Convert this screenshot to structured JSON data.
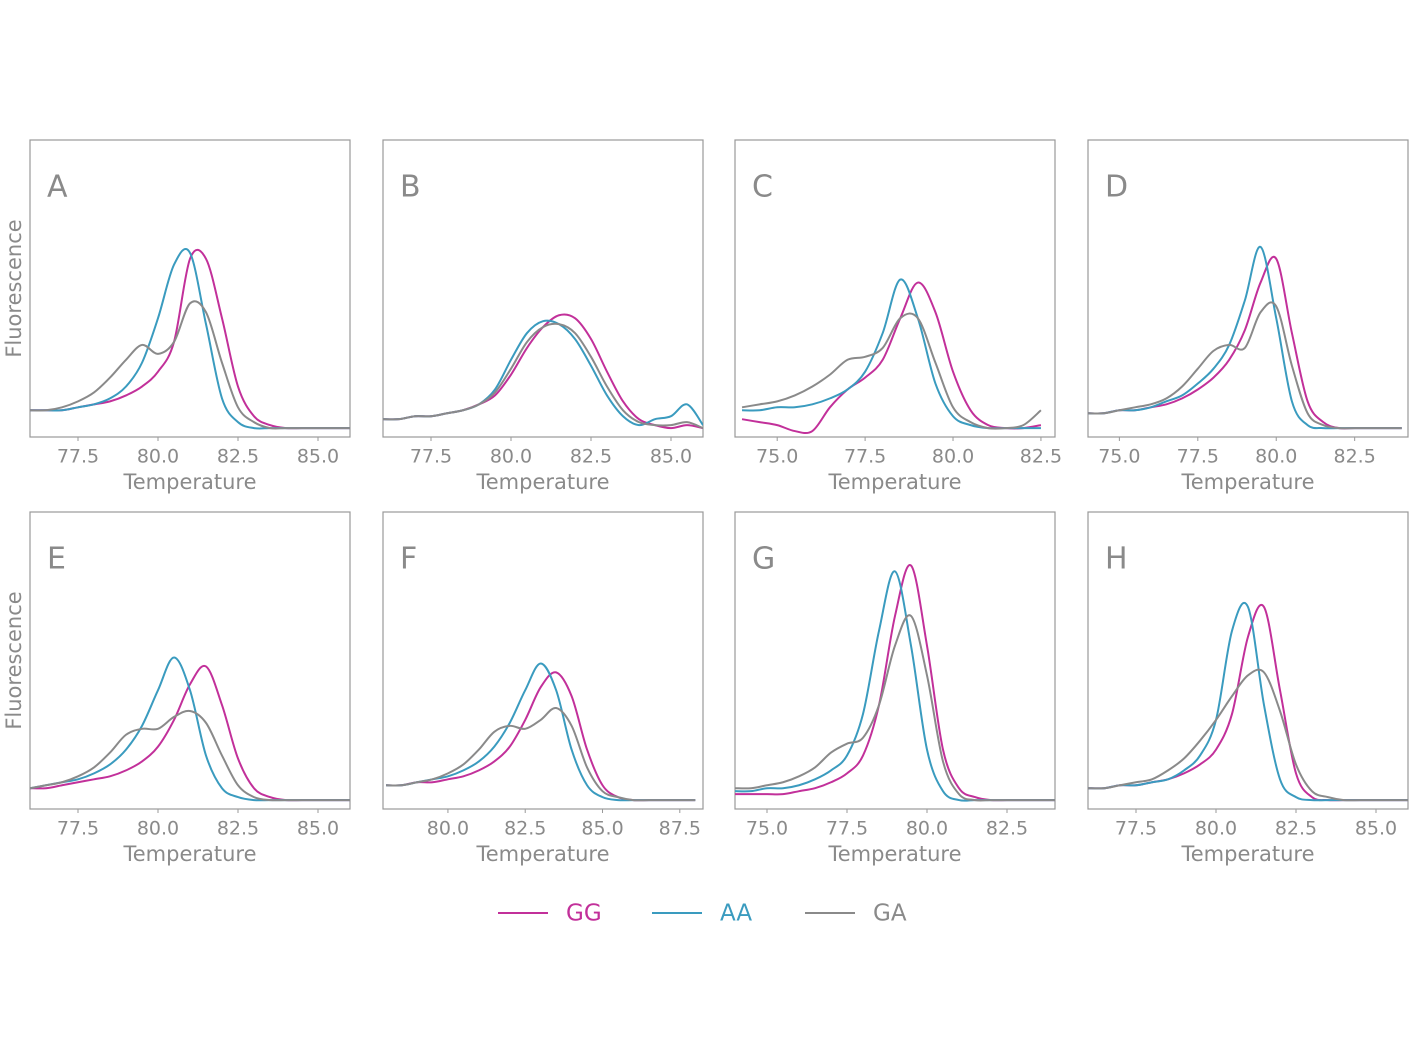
{
  "chart_data": [
    {
      "type": "line",
      "label": "A",
      "xlabel": "Temperature",
      "ylabel": "Fluorescence",
      "x": [
        76,
        76.5,
        77,
        77.5,
        78,
        78.5,
        79,
        79.5,
        80,
        80.5,
        81,
        81.5,
        82,
        82.5,
        83,
        83.5,
        84,
        84.5,
        85,
        85.5,
        86
      ],
      "xlim": [
        76,
        86
      ],
      "xticks": [
        77.5,
        {
          "value": 80,
          "label": "80.0"
        },
        82.5,
        {
          "value": 85,
          "label": "85.0"
        }
      ],
      "ylim": [
        0,
        1
      ],
      "series": [
        {
          "name": "GG",
          "values": [
            0.09,
            0.09,
            0.09,
            0.1,
            0.11,
            0.12,
            0.14,
            0.17,
            0.22,
            0.32,
            0.6,
            0.6,
            0.4,
            0.17,
            0.07,
            0.04,
            0.03,
            0.03,
            0.03,
            0.03,
            0.03
          ]
        },
        {
          "name": "AA",
          "values": [
            0.09,
            0.09,
            0.09,
            0.1,
            0.11,
            0.13,
            0.17,
            0.25,
            0.4,
            0.58,
            0.62,
            0.38,
            0.13,
            0.05,
            0.03,
            0.03,
            0.03,
            0.03,
            0.03,
            0.03,
            0.03
          ]
        },
        {
          "name": "GA",
          "values": [
            0.09,
            0.09,
            0.1,
            0.12,
            0.15,
            0.2,
            0.26,
            0.31,
            0.28,
            0.32,
            0.45,
            0.42,
            0.25,
            0.1,
            0.05,
            0.03,
            0.03,
            0.03,
            0.03,
            0.03,
            0.03
          ]
        }
      ]
    },
    {
      "type": "line",
      "label": "B",
      "xlabel": "Temperature",
      "x": [
        76,
        76.5,
        77,
        77.5,
        78,
        78.5,
        79,
        79.5,
        80,
        80.5,
        81,
        81.5,
        82,
        82.5,
        83,
        83.5,
        84,
        84.5,
        85,
        85.5,
        86
      ],
      "xlim": [
        76,
        86
      ],
      "xticks": [
        77.5,
        {
          "value": 80,
          "label": "80.0"
        },
        82.5,
        {
          "value": 85,
          "label": "85.0"
        }
      ],
      "ylim": [
        0,
        1
      ],
      "series": [
        {
          "name": "GG",
          "values": [
            0.06,
            0.06,
            0.07,
            0.07,
            0.08,
            0.09,
            0.11,
            0.14,
            0.21,
            0.3,
            0.37,
            0.41,
            0.4,
            0.33,
            0.22,
            0.12,
            0.06,
            0.04,
            0.03,
            0.04,
            0.03
          ]
        },
        {
          "name": "AA",
          "values": [
            0.06,
            0.06,
            0.07,
            0.07,
            0.08,
            0.09,
            0.11,
            0.16,
            0.26,
            0.35,
            0.39,
            0.38,
            0.33,
            0.24,
            0.14,
            0.07,
            0.04,
            0.06,
            0.07,
            0.11,
            0.04
          ]
        },
        {
          "name": "GA",
          "values": [
            0.06,
            0.06,
            0.07,
            0.07,
            0.08,
            0.09,
            0.11,
            0.15,
            0.23,
            0.32,
            0.37,
            0.38,
            0.35,
            0.27,
            0.17,
            0.09,
            0.05,
            0.04,
            0.04,
            0.05,
            0.03
          ]
        }
      ]
    },
    {
      "type": "line",
      "label": "C",
      "xlabel": "Temperature",
      "x": [
        74,
        74.5,
        75,
        75.5,
        76,
        76.5,
        77,
        77.5,
        78,
        78.5,
        79,
        79.5,
        80,
        80.5,
        81,
        81.5,
        82,
        82.5
      ],
      "xlim": [
        73.8,
        82.9
      ],
      "xticks": [
        {
          "value": 75,
          "label": "75.0"
        },
        77.5,
        {
          "value": 80,
          "label": "80.0"
        },
        82.5
      ],
      "ylim": [
        0,
        1
      ],
      "series": [
        {
          "name": "GG",
          "values": [
            0.06,
            0.05,
            0.04,
            0.02,
            0.02,
            0.1,
            0.16,
            0.2,
            0.26,
            0.4,
            0.52,
            0.42,
            0.22,
            0.09,
            0.04,
            0.03,
            0.03,
            0.04
          ]
        },
        {
          "name": "AA",
          "values": [
            0.09,
            0.09,
            0.1,
            0.1,
            0.11,
            0.13,
            0.16,
            0.22,
            0.35,
            0.53,
            0.4,
            0.18,
            0.07,
            0.04,
            0.03,
            0.03,
            0.03,
            0.03
          ]
        },
        {
          "name": "GA",
          "values": [
            0.1,
            0.11,
            0.12,
            0.14,
            0.17,
            0.21,
            0.26,
            0.27,
            0.3,
            0.4,
            0.4,
            0.25,
            0.1,
            0.05,
            0.03,
            0.03,
            0.04,
            0.09
          ]
        }
      ]
    },
    {
      "type": "line",
      "label": "D",
      "xlabel": "Temperature",
      "x": [
        74,
        74.5,
        75,
        75.5,
        76,
        76.5,
        77,
        77.5,
        78,
        78.5,
        79,
        79.5,
        80,
        80.5,
        81,
        81.5,
        82,
        82.5,
        83,
        83.5,
        84
      ],
      "xlim": [
        74,
        84.2
      ],
      "xticks": [
        {
          "value": 75,
          "label": "75.0"
        },
        77.5,
        {
          "value": 80,
          "label": "80.0"
        },
        82.5
      ],
      "ylim": [
        0,
        1
      ],
      "series": [
        {
          "name": "GG",
          "values": [
            0.08,
            0.08,
            0.09,
            0.09,
            0.1,
            0.11,
            0.13,
            0.16,
            0.2,
            0.26,
            0.36,
            0.52,
            0.6,
            0.35,
            0.12,
            0.05,
            0.03,
            0.03,
            0.03,
            0.03,
            0.03
          ]
        },
        {
          "name": "AA",
          "values": [
            0.08,
            0.08,
            0.09,
            0.09,
            0.1,
            0.12,
            0.14,
            0.18,
            0.23,
            0.31,
            0.46,
            0.64,
            0.4,
            0.12,
            0.04,
            0.03,
            0.03,
            0.03,
            0.03,
            0.03,
            0.03
          ]
        },
        {
          "name": "GA",
          "values": [
            0.08,
            0.08,
            0.09,
            0.1,
            0.11,
            0.13,
            0.17,
            0.23,
            0.29,
            0.31,
            0.3,
            0.42,
            0.44,
            0.24,
            0.08,
            0.04,
            0.03,
            0.03,
            0.03,
            0.03,
            0.03
          ]
        }
      ]
    },
    {
      "type": "line",
      "label": "E",
      "xlabel": "Temperature",
      "ylabel": "Fluorescence",
      "x": [
        76,
        76.5,
        77,
        77.5,
        78,
        78.5,
        79,
        79.5,
        80,
        80.5,
        81,
        81.5,
        82,
        82.5,
        83,
        83.5,
        84,
        84.5,
        85,
        85.5,
        86
      ],
      "xlim": [
        76,
        86
      ],
      "xticks": [
        77.5,
        {
          "value": 80,
          "label": "80.0"
        },
        82.5,
        {
          "value": 85,
          "label": "85.0"
        }
      ],
      "ylim": [
        0,
        1
      ],
      "series": [
        {
          "name": "GG",
          "values": [
            0.07,
            0.07,
            0.08,
            0.09,
            0.1,
            0.11,
            0.13,
            0.16,
            0.21,
            0.3,
            0.42,
            0.48,
            0.35,
            0.17,
            0.07,
            0.04,
            0.03,
            0.03,
            0.03,
            0.03,
            0.03
          ]
        },
        {
          "name": "AA",
          "values": [
            0.07,
            0.08,
            0.09,
            0.1,
            0.12,
            0.15,
            0.2,
            0.28,
            0.4,
            0.51,
            0.4,
            0.18,
            0.07,
            0.04,
            0.03,
            0.03,
            0.03,
            0.03,
            0.03,
            0.03,
            0.03
          ]
        },
        {
          "name": "GA",
          "values": [
            0.07,
            0.08,
            0.09,
            0.11,
            0.14,
            0.19,
            0.25,
            0.27,
            0.27,
            0.31,
            0.33,
            0.29,
            0.18,
            0.08,
            0.04,
            0.03,
            0.03,
            0.03,
            0.03,
            0.03,
            0.03
          ]
        }
      ]
    },
    {
      "type": "line",
      "label": "F",
      "xlabel": "Temperature",
      "x": [
        78,
        78.5,
        79,
        79.5,
        80,
        80.5,
        81,
        81.5,
        82,
        82.5,
        83,
        83.5,
        84,
        84.5,
        85,
        85.5,
        86,
        86.5,
        87,
        87.5,
        88
      ],
      "xlim": [
        77.9,
        88.25
      ],
      "xticks": [
        {
          "value": 80,
          "label": "80.0"
        },
        82.5,
        {
          "value": 85,
          "label": "85.0"
        },
        87.5
      ],
      "ylim": [
        0,
        1
      ],
      "series": [
        {
          "name": "GG",
          "values": [
            0.08,
            0.08,
            0.09,
            0.09,
            0.1,
            0.11,
            0.13,
            0.16,
            0.21,
            0.3,
            0.41,
            0.46,
            0.38,
            0.2,
            0.08,
            0.04,
            0.03,
            0.03,
            0.03,
            0.03,
            0.03
          ]
        },
        {
          "name": "AA",
          "values": [
            0.08,
            0.08,
            0.09,
            0.1,
            0.11,
            0.13,
            0.16,
            0.21,
            0.29,
            0.4,
            0.49,
            0.4,
            0.2,
            0.08,
            0.04,
            0.03,
            0.03,
            0.03,
            0.03,
            0.03,
            0.03
          ]
        },
        {
          "name": "GA",
          "values": [
            0.08,
            0.08,
            0.09,
            0.1,
            0.12,
            0.15,
            0.2,
            0.26,
            0.28,
            0.27,
            0.3,
            0.34,
            0.28,
            0.14,
            0.06,
            0.04,
            0.03,
            0.03,
            0.03,
            0.03,
            0.03
          ]
        }
      ]
    },
    {
      "type": "line",
      "label": "G",
      "xlabel": "Temperature",
      "x": [
        74,
        74.5,
        75,
        75.5,
        76,
        76.5,
        77,
        77.5,
        78,
        78.5,
        79,
        79.5,
        80,
        80.5,
        81,
        81.5,
        82,
        82.5,
        83,
        83.5,
        84
      ],
      "xlim": [
        74,
        84
      ],
      "xticks": [
        {
          "value": 75,
          "label": "75.0"
        },
        77.5,
        {
          "value": 80,
          "label": "80.0"
        },
        82.5
      ],
      "ylim": [
        0,
        1
      ],
      "series": [
        {
          "name": "GG",
          "values": [
            0.05,
            0.05,
            0.05,
            0.05,
            0.06,
            0.07,
            0.09,
            0.12,
            0.18,
            0.35,
            0.65,
            0.82,
            0.55,
            0.2,
            0.07,
            0.04,
            0.03,
            0.03,
            0.03,
            0.03,
            0.03
          ]
        },
        {
          "name": "AA",
          "values": [
            0.06,
            0.06,
            0.07,
            0.07,
            0.08,
            0.1,
            0.13,
            0.18,
            0.32,
            0.6,
            0.8,
            0.55,
            0.2,
            0.06,
            0.03,
            0.03,
            0.03,
            0.03,
            0.03,
            0.03,
            0.03
          ]
        },
        {
          "name": "GA",
          "values": [
            0.07,
            0.07,
            0.08,
            0.09,
            0.11,
            0.14,
            0.19,
            0.22,
            0.24,
            0.35,
            0.55,
            0.65,
            0.45,
            0.16,
            0.05,
            0.03,
            0.03,
            0.03,
            0.03,
            0.03,
            0.03
          ]
        }
      ]
    },
    {
      "type": "line",
      "label": "H",
      "xlabel": "Temperature",
      "x": [
        76,
        76.5,
        77,
        77.5,
        78,
        78.5,
        79,
        79.5,
        80,
        80.5,
        81,
        81.5,
        82,
        82.5,
        83,
        83.5,
        84,
        84.5,
        85,
        85.5,
        86
      ],
      "xlim": [
        76,
        86
      ],
      "xticks": [
        77.5,
        {
          "value": 80,
          "label": "80.0"
        },
        82.5,
        {
          "value": 85,
          "label": "85.0"
        }
      ],
      "ylim": [
        0,
        1
      ],
      "series": [
        {
          "name": "GG",
          "values": [
            0.07,
            0.07,
            0.08,
            0.08,
            0.09,
            0.1,
            0.12,
            0.15,
            0.2,
            0.32,
            0.58,
            0.68,
            0.4,
            0.12,
            0.04,
            0.03,
            0.03,
            0.03,
            0.03,
            0.03,
            0.03
          ]
        },
        {
          "name": "AA",
          "values": [
            0.07,
            0.07,
            0.08,
            0.08,
            0.09,
            0.1,
            0.13,
            0.18,
            0.3,
            0.6,
            0.68,
            0.35,
            0.1,
            0.04,
            0.03,
            0.03,
            0.03,
            0.03,
            0.03,
            0.03,
            0.03
          ]
        },
        {
          "name": "GA",
          "values": [
            0.07,
            0.07,
            0.08,
            0.09,
            0.1,
            0.13,
            0.17,
            0.23,
            0.3,
            0.38,
            0.45,
            0.46,
            0.33,
            0.15,
            0.06,
            0.04,
            0.03,
            0.03,
            0.03,
            0.03,
            0.03
          ]
        }
      ]
    }
  ],
  "legend": [
    {
      "name": "GG",
      "color": "#c2309a"
    },
    {
      "name": "AA",
      "color": "#3a9bbf"
    },
    {
      "name": "GA",
      "color": "#8a8a8a"
    }
  ]
}
